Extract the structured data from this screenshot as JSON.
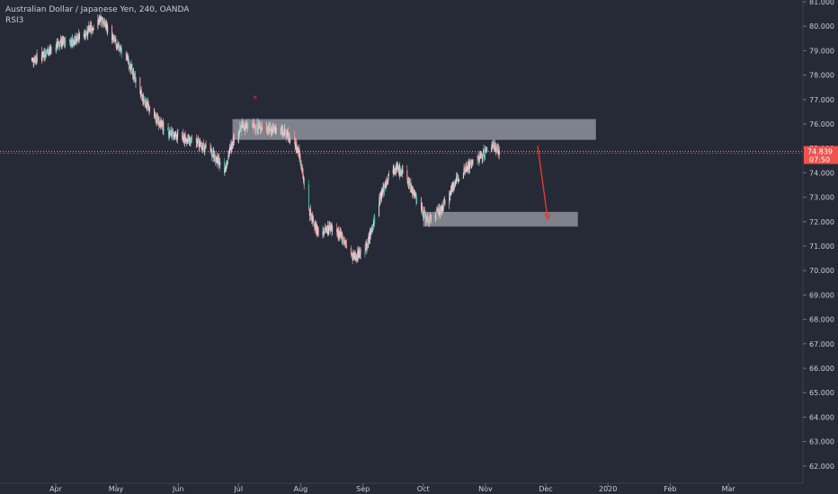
{
  "header": {
    "symbol_line": "Australian Dollar / Japanese Yen, 240, OANDA",
    "indicator": "RSI3"
  },
  "price_tag": {
    "price": "74.839",
    "countdown": "07:50"
  },
  "colors": {
    "background": "#262a36",
    "up_candle": "#d7dde8",
    "down_candle": "#f0a6a6",
    "teal_candle": "#4ab8a1",
    "zone": "#c8cbd4",
    "arrow": "#e53935",
    "price_tag": "#ef5350"
  },
  "chart_data": {
    "type": "candlestick",
    "title": "Australian Dollar / Japanese Yen, 240, OANDA",
    "ylim": [
      61.5,
      81.2
    ],
    "yticks": [
      "81.000",
      "80.000",
      "79.000",
      "78.000",
      "77.000",
      "76.000",
      "75.000",
      "74.000",
      "73.000",
      "72.000",
      "71.000",
      "70.000",
      "69.000",
      "68.000",
      "67.000",
      "66.000",
      "65.000",
      "64.000",
      "63.000",
      "62.000"
    ],
    "xticks": [
      "Apr",
      "May",
      "Jun",
      "Jul",
      "Aug",
      "Sep",
      "Oct",
      "Nov",
      "Dec",
      "2020",
      "Feb",
      "Mar"
    ],
    "price_path": [
      [
        "2019-03-20",
        78.6
      ],
      [
        "2019-03-27",
        78.9
      ],
      [
        "2019-04-03",
        79.3
      ],
      [
        "2019-04-10",
        79.4
      ],
      [
        "2019-04-17",
        79.8
      ],
      [
        "2019-04-24",
        80.3
      ],
      [
        "2019-04-30",
        79.4
      ],
      [
        "2019-05-07",
        78.6
      ],
      [
        "2019-05-14",
        77.1
      ],
      [
        "2019-05-21",
        76.2
      ],
      [
        "2019-05-28",
        75.6
      ],
      [
        "2019-06-04",
        75.4
      ],
      [
        "2019-06-11",
        75.2
      ],
      [
        "2019-06-18",
        74.8
      ],
      [
        "2019-06-24",
        74.1
      ],
      [
        "2019-06-28",
        75.3
      ],
      [
        "2019-07-03",
        75.9
      ],
      [
        "2019-07-10",
        75.9
      ],
      [
        "2019-07-17",
        75.8
      ],
      [
        "2019-07-24",
        75.7
      ],
      [
        "2019-07-31",
        74.9
      ],
      [
        "2019-08-05",
        72.5
      ],
      [
        "2019-08-10",
        71.5
      ],
      [
        "2019-08-16",
        71.8
      ],
      [
        "2019-08-22",
        71.3
      ],
      [
        "2019-08-27",
        70.5
      ],
      [
        "2019-09-03",
        71.0
      ],
      [
        "2019-09-10",
        73.1
      ],
      [
        "2019-09-16",
        74.3
      ],
      [
        "2019-09-22",
        73.9
      ],
      [
        "2019-09-28",
        72.9
      ],
      [
        "2019-10-03",
        72.0
      ],
      [
        "2019-10-10",
        72.5
      ],
      [
        "2019-10-16",
        73.5
      ],
      [
        "2019-10-22",
        74.2
      ],
      [
        "2019-10-29",
        74.6
      ],
      [
        "2019-11-05",
        75.2
      ],
      [
        "2019-11-08",
        74.8
      ]
    ],
    "zones": [
      {
        "from": "2019-06-28",
        "to": "2019-12-26",
        "low": 75.35,
        "high": 76.2
      },
      {
        "from": "2019-10-01",
        "to": "2019-12-17",
        "low": 71.8,
        "high": 72.4
      }
    ],
    "arrow": {
      "from": [
        "2019-11-27",
        75.1
      ],
      "to": [
        "2019-12-02",
        72.1
      ]
    },
    "current_price": 74.839
  }
}
